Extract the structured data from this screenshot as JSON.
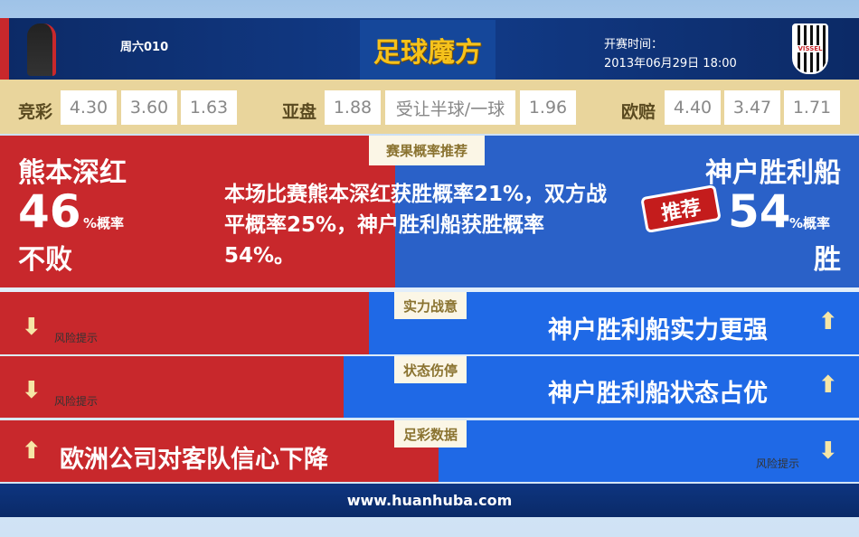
{
  "header": {
    "match_no": "周六010",
    "logo_text": "足球魔方",
    "kickoff_label": "开赛时间：",
    "kickoff_time": "2013年06月29日 18:00",
    "away_logo_text": "VISSEL"
  },
  "odds": {
    "jingcai_label": "竞彩",
    "jingcai": [
      "4.30",
      "3.60",
      "1.63"
    ],
    "yapan_label": "亚盘",
    "yapan": [
      "1.88",
      "受让半球/一球",
      "1.96"
    ],
    "oupei_label": "欧赔",
    "oupei": [
      "4.40",
      "3.47",
      "1.71"
    ]
  },
  "prob": {
    "tag": "赛果概率推荐",
    "home": "熊本深红",
    "home_pct": "46",
    "home_pct_unit": "%概率",
    "home_pick": "不败",
    "summary": "本场比赛熊本深红获胜概率21%，双方战平概率25%，神户胜利船获胜概率54%。",
    "away": "神户胜利船",
    "recommend": "推荐",
    "away_pct": "54",
    "away_pct_unit": "%概率",
    "away_pick": "胜"
  },
  "rows": [
    {
      "tag": "实力战意",
      "left": "风险提示",
      "right": "神户胜利船实力更强",
      "red_share": 0.43
    },
    {
      "tag": "状态伤停",
      "left": "风险提示",
      "right": "神户胜利船状态占优",
      "red_share": 0.4
    },
    {
      "tag": "足彩数据",
      "left": "欧洲公司对客队信心下降",
      "right": "风险提示",
      "red_share": 0.51
    }
  ],
  "footer": {
    "url": "www.huanhuba.com"
  },
  "colors": {
    "home": "#c8282c",
    "away": "#2a61c8",
    "gold": "#f6c21b"
  }
}
